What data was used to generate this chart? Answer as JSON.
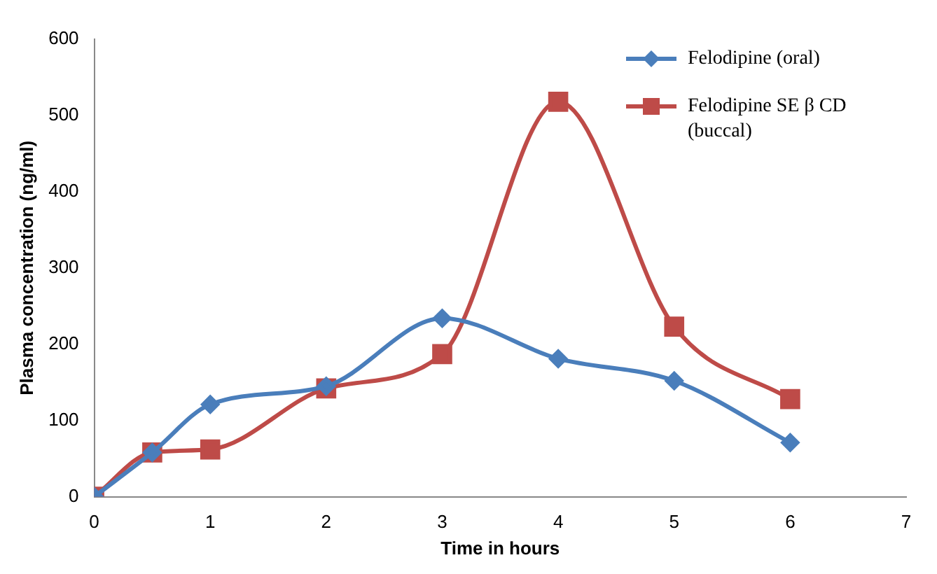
{
  "chart_data": {
    "type": "line",
    "xlabel": "Time in hours",
    "ylabel": "Plasma concentration (ng/ml)",
    "xlim": [
      0,
      7
    ],
    "xticks": [
      0,
      1,
      2,
      3,
      4,
      5,
      6,
      7
    ],
    "ylim": [
      0,
      600
    ],
    "yticks": [
      0,
      100,
      200,
      300,
      400,
      500,
      600
    ],
    "grid": false,
    "legend": "top right",
    "series": [
      {
        "name": "Felodipine (oral)",
        "color": "#4a7ebb",
        "marker": "diamond",
        "x": [
          0,
          0.5,
          1,
          2,
          3,
          4,
          5,
          6
        ],
        "values": [
          0,
          58,
          121,
          145,
          234,
          181,
          152,
          71
        ]
      },
      {
        "name": "Felodipine SE β CD (buccal)",
        "color": "#be4b48",
        "marker": "square",
        "x": [
          0,
          0.5,
          1,
          2,
          3,
          4,
          5,
          6
        ],
        "values": [
          0,
          58,
          62,
          142,
          187,
          518,
          223,
          128
        ]
      }
    ]
  }
}
